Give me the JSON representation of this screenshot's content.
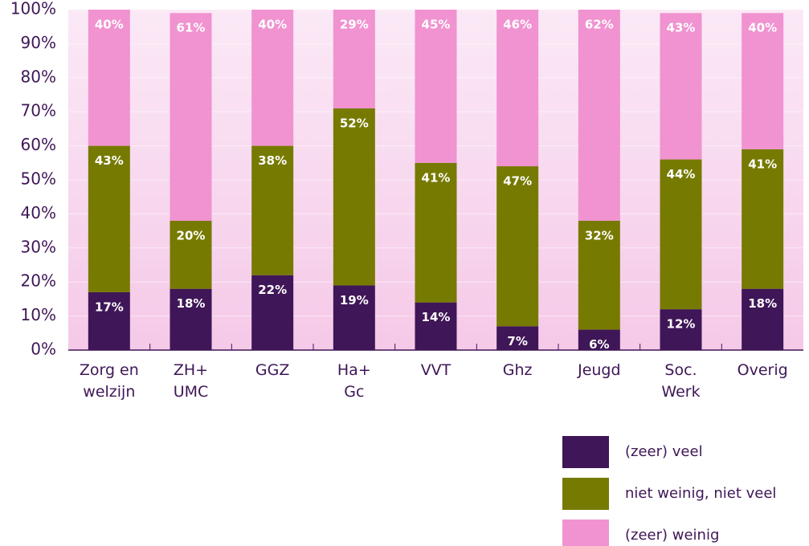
{
  "chart_data": {
    "type": "stacked_bar",
    "categories": [
      "Zorg en\nwelzijn",
      "ZH+\nUMC",
      "GGZ",
      "Ha+\nGc",
      "VVT",
      "Ghz",
      "Jeugd",
      "Soc.\nWerk",
      "Overig"
    ],
    "series": [
      {
        "name": "(zeer) veel",
        "color": "#3f1657",
        "values": [
          17,
          18,
          22,
          19,
          14,
          7,
          6,
          12,
          18
        ],
        "value_labels": [
          "17%",
          "18%",
          "22%",
          "19%",
          "14%",
          "7%",
          "6%",
          "12%",
          "18%"
        ]
      },
      {
        "name": "niet weinig, niet veel",
        "color": "#777a00",
        "values": [
          43,
          20,
          38,
          52,
          41,
          47,
          32,
          44,
          41
        ],
        "value_labels": [
          "43%",
          "20%",
          "38%",
          "52%",
          "41%",
          "47%",
          "32%",
          "44%",
          "41%"
        ]
      },
      {
        "name": "(zeer) weinig",
        "color": "#f093d0",
        "values": [
          40,
          61,
          40,
          29,
          45,
          46,
          62,
          43,
          40
        ],
        "value_labels": [
          "40%",
          "61%",
          "40%",
          "29%",
          "45%",
          "46%",
          "62%",
          "43%",
          "40%"
        ]
      }
    ],
    "ylim": [
      0,
      100
    ],
    "yticks": [
      {
        "value": 0,
        "label": "0%"
      },
      {
        "value": 10,
        "label": "10%"
      },
      {
        "value": 20,
        "label": "20%"
      },
      {
        "value": 30,
        "label": "30%"
      },
      {
        "value": 40,
        "label": "40%"
      },
      {
        "value": 50,
        "label": "50%"
      },
      {
        "value": 60,
        "label": "60%"
      },
      {
        "value": 70,
        "label": "70%"
      },
      {
        "value": 80,
        "label": "80%"
      },
      {
        "value": 90,
        "label": "90%"
      },
      {
        "value": 100,
        "label": "100%"
      }
    ],
    "grid": true
  }
}
